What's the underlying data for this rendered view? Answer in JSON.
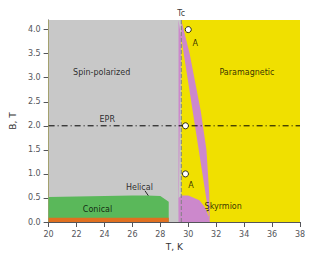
{
  "chart_data": {
    "type": "phase_diagram",
    "xlabel": "T, K",
    "ylabel": "B, T",
    "xlim": [
      20,
      38
    ],
    "ylim": [
      0,
      4.2
    ],
    "xticks": [
      20,
      22,
      24,
      26,
      28,
      30,
      32,
      34,
      36,
      38
    ],
    "yticks": [
      {
        "value": 0,
        "label": "0.0"
      },
      0.5,
      {
        "value": 1.0,
        "label": "1.0"
      },
      1.5,
      {
        "value": 2.0,
        "label": "2.0"
      },
      2.5,
      {
        "value": 3.0,
        "label": "3.0"
      },
      3.5,
      {
        "value": 4.0,
        "label": "4.0"
      }
    ],
    "grid": false,
    "series": [
      {
        "type": "polygon",
        "color": "#f0e000",
        "x": [
          20,
          38,
          38,
          20
        ],
        "y": [
          0,
          0,
          4.2,
          4.2
        ]
      },
      {
        "type": "polygon",
        "color": "#c8c8c8",
        "x": [
          20,
          29.5,
          29.5,
          20
        ],
        "y": [
          0,
          0,
          4.2,
          4.2
        ]
      },
      {
        "type": "polygon",
        "color": "#cc88cc",
        "x": [
          29.5,
          30.1,
          30.9,
          31.3,
          31.5,
          31.55,
          29.3,
          29.3,
          29.3,
          29.3,
          29.3
        ],
        "y": [
          4.2,
          3.5,
          2.3,
          1.5,
          0.6,
          0.0,
          4.2,
          2.0,
          1.0,
          0.5,
          0.0
        ]
      },
      {
        "type": "polygon",
        "color": "#5ab85a",
        "x": [
          20,
          20,
          22,
          24,
          26,
          27,
          28,
          28.6,
          28.6,
          20
        ],
        "y": [
          0,
          0.52,
          0.53,
          0.54,
          0.55,
          0.55,
          0.54,
          0.42,
          0,
          0
        ]
      },
      {
        "type": "polygon",
        "color": "#e07020",
        "x": [
          20,
          28.6,
          28.6,
          20
        ],
        "y": [
          0,
          0,
          0.09,
          0.09
        ]
      },
      {
        "type": "polygon",
        "color": "#cc88cc",
        "x": [
          29.3,
          29.5,
          30.0,
          30.8,
          31.2,
          31.5,
          31.55,
          29.3
        ],
        "y": [
          0.5,
          0.55,
          0.55,
          0.45,
          0.3,
          0.1,
          0.0,
          0.0
        ]
      },
      {
        "type": "line",
        "color": "#808080",
        "line_style": "dashed",
        "x": [
          29.5,
          29.5
        ],
        "y": [
          0,
          4.2
        ]
      },
      {
        "type": "line",
        "color": "#000000",
        "line_style": "dashdot",
        "x": [
          20,
          38
        ],
        "y": [
          2.0,
          2.0
        ]
      },
      {
        "type": "arrow",
        "x": [
          26.9,
          27.9
        ],
        "y": [
          0.65,
          0.22
        ]
      },
      {
        "type": "arrow",
        "x": [
          31.5,
          30.35
        ],
        "y": [
          0.25,
          0.12
        ]
      },
      {
        "type": "scatter",
        "marker": "circle",
        "x": [
          30.0,
          29.8,
          29.8
        ],
        "y": [
          4.0,
          2.0,
          1.0
        ]
      }
    ],
    "annotations": [
      {
        "text": "A",
        "x": 30.5,
        "y": 3.72
      },
      {
        "text": "A",
        "x": 30.2,
        "y": 0.76
      },
      {
        "text": "Spin-polarized",
        "x": 23.8,
        "y": 3.1
      },
      {
        "text": "Paramagnetic",
        "x": 34.2,
        "y": 3.1
      },
      {
        "text": "EPR",
        "x": 24.2,
        "y": 2.13
      },
      {
        "text": "Conical",
        "x": 23.5,
        "y": 0.27
      },
      {
        "text": "Helical",
        "x": 26.5,
        "y": 0.72
      },
      {
        "text": "Skyrmion",
        "x": 32.5,
        "y": 0.32
      },
      {
        "text": "Tc",
        "x": 29.5,
        "y": 4.2
      }
    ]
  }
}
